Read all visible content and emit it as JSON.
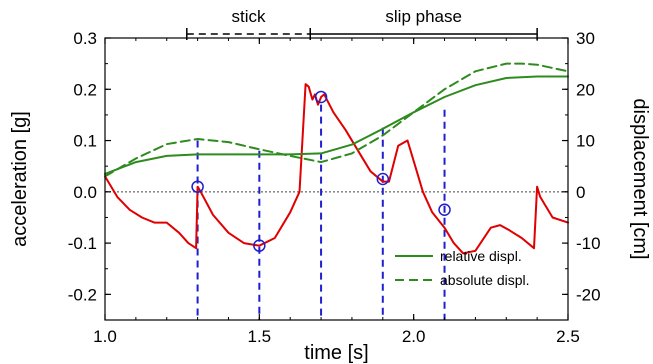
{
  "chart_data": {
    "type": "line",
    "xlabel": "time [s]",
    "ylabel_left": "acceleration [g]",
    "ylabel_right": "displacement [cm]",
    "xlim": [
      1.0,
      2.5
    ],
    "ylim_left": [
      -0.25,
      0.3
    ],
    "ylim_right": [
      -25,
      30
    ],
    "x_ticks": [
      "1.0",
      "1.5",
      "2.0",
      "2.5"
    ],
    "y_left_ticks": [
      "0.3",
      "0.2",
      "0.1",
      "0.0",
      "-0.1",
      "-0.2"
    ],
    "y_right_ticks": [
      "30",
      "20",
      "10",
      "0",
      "-10",
      "-20"
    ],
    "grid": false,
    "zero_line": true,
    "legend_position": "bottom-right",
    "phases": [
      {
        "label": "stick",
        "x_start": 1.265,
        "x_end": 1.665,
        "style": "dashed"
      },
      {
        "label": "slip phase",
        "x_start": 1.665,
        "x_end": 2.4,
        "style": "solid"
      }
    ],
    "series": [
      {
        "name": "",
        "axis": "left",
        "color": "#e00000",
        "style": "solid",
        "x": [
          1.0,
          1.04,
          1.08,
          1.12,
          1.16,
          1.2,
          1.24,
          1.27,
          1.295,
          1.3,
          1.31,
          1.35,
          1.4,
          1.45,
          1.5,
          1.55,
          1.6,
          1.63,
          1.65,
          1.66,
          1.672,
          1.68,
          1.69,
          1.7,
          1.71,
          1.74,
          1.78,
          1.82,
          1.86,
          1.9,
          1.92,
          1.95,
          1.98,
          2.0,
          2.03,
          2.06,
          2.1,
          2.13,
          2.16,
          2.2,
          2.25,
          2.28,
          2.31,
          2.35,
          2.39,
          2.4,
          2.41,
          2.45,
          2.5
        ],
        "y": [
          0.03,
          -0.01,
          -0.035,
          -0.05,
          -0.06,
          -0.06,
          -0.08,
          -0.1,
          -0.11,
          0.01,
          0.0,
          -0.045,
          -0.08,
          -0.1,
          -0.105,
          -0.09,
          -0.04,
          0.0,
          0.21,
          0.205,
          0.18,
          0.19,
          0.17,
          0.185,
          0.19,
          0.155,
          0.12,
          0.08,
          0.04,
          0.02,
          0.02,
          0.09,
          0.1,
          0.06,
          0.0,
          -0.04,
          -0.07,
          -0.1,
          -0.12,
          -0.115,
          -0.07,
          -0.065,
          -0.075,
          -0.09,
          -0.11,
          0.01,
          -0.01,
          -0.05,
          -0.06
        ]
      },
      {
        "name": "relative displ.",
        "axis": "right",
        "color": "#2e8b1e",
        "style": "solid",
        "x": [
          1.0,
          1.1,
          1.2,
          1.3,
          1.4,
          1.5,
          1.6,
          1.7,
          1.8,
          1.9,
          2.0,
          2.1,
          2.2,
          2.3,
          2.4,
          2.5
        ],
        "y": [
          3.5,
          5.8,
          7.0,
          7.3,
          7.3,
          7.3,
          7.3,
          7.5,
          9.2,
          12.3,
          15.5,
          18.5,
          20.8,
          22.2,
          22.5,
          22.5
        ]
      },
      {
        "name": "absolute displ.",
        "axis": "right",
        "color": "#2e8b1e",
        "style": "dashed",
        "x": [
          1.0,
          1.1,
          1.2,
          1.3,
          1.4,
          1.5,
          1.6,
          1.7,
          1.8,
          1.9,
          2.0,
          2.1,
          2.2,
          2.3,
          2.35,
          2.4,
          2.5
        ],
        "y": [
          3.0,
          6.5,
          9.3,
          10.3,
          9.7,
          8.3,
          7.0,
          5.8,
          7.5,
          11.0,
          15.5,
          20.0,
          23.5,
          25.0,
          25.0,
          24.8,
          23.5
        ]
      }
    ],
    "markers": [
      {
        "x": 1.3,
        "y": 0.01
      },
      {
        "x": 1.5,
        "y": -0.105
      },
      {
        "x": 1.7,
        "y": 0.185
      },
      {
        "x": 1.9,
        "y": 0.025
      },
      {
        "x": 2.1,
        "y": -0.035
      }
    ],
    "vertical_lines": [
      {
        "x": 1.3,
        "y_top": 0.1
      },
      {
        "x": 1.5,
        "y_top": 0.08
      },
      {
        "x": 1.7,
        "y_top": 0.17
      },
      {
        "x": 1.9,
        "y_top": 0.125
      },
      {
        "x": 2.1,
        "y_top": 0.16
      }
    ],
    "colors": {
      "accel": "#e00000",
      "displacement": "#2e8b1e",
      "marker": "#1f1fd0",
      "zero_line": "#444444"
    }
  }
}
